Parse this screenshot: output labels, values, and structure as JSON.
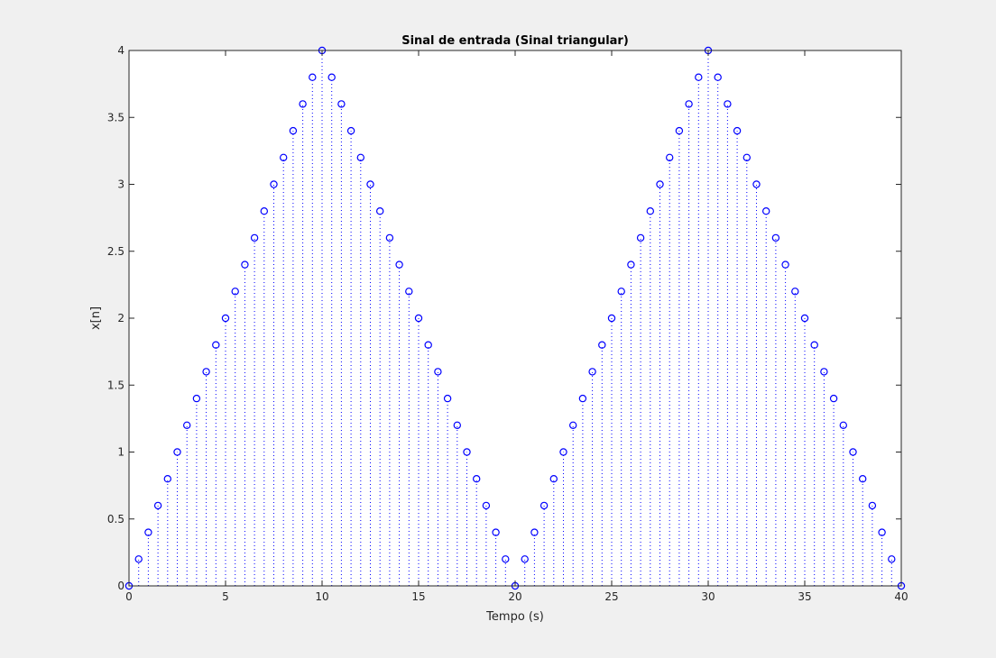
{
  "chart_data": {
    "type": "scatter",
    "style": "stem",
    "title": "Sinal de entrada (Sinal triangular)",
    "xlabel": "Tempo (s)",
    "ylabel": "x[n]",
    "xlim": [
      0,
      40
    ],
    "ylim": [
      0,
      4
    ],
    "xticks": [
      "0",
      "5",
      "10",
      "15",
      "20",
      "25",
      "30",
      "35",
      "40"
    ],
    "yticks": [
      "0",
      "0.5",
      "1",
      "1.5",
      "2",
      "2.5",
      "3",
      "3.5",
      "4"
    ],
    "grid": false,
    "marker": "circle",
    "stem_line": "dotted",
    "colors": {
      "stem": "#0000ff",
      "axes_bg": "#ffffff",
      "figure_bg": "#f0f0f0",
      "axis": "#262626"
    },
    "series": [
      {
        "x": [
          0,
          0.5,
          1,
          1.5,
          2,
          2.5,
          3,
          3.5,
          4,
          4.5,
          5,
          5.5,
          6,
          6.5,
          7,
          7.5,
          8,
          8.5,
          9,
          9.5,
          10,
          10.5,
          11,
          11.5,
          12,
          12.5,
          13,
          13.5,
          14,
          14.5,
          15,
          15.5,
          16,
          16.5,
          17,
          17.5,
          18,
          18.5,
          19,
          19.5,
          20,
          20.5,
          21,
          21.5,
          22,
          22.5,
          23,
          23.5,
          24,
          24.5,
          25,
          25.5,
          26,
          26.5,
          27,
          27.5,
          28,
          28.5,
          29,
          29.5,
          30,
          30.5,
          31,
          31.5,
          32,
          32.5,
          33,
          33.5,
          34,
          34.5,
          35,
          35.5,
          36,
          36.5,
          37,
          37.5,
          38,
          38.5,
          39,
          39.5,
          40
        ],
        "y": [
          0,
          0.2,
          0.4,
          0.6,
          0.8,
          1,
          1.2,
          1.4,
          1.6,
          1.8,
          2,
          2.2,
          2.4,
          2.6,
          2.8,
          3,
          3.2,
          3.4,
          3.6,
          3.8,
          4,
          3.8,
          3.6,
          3.4,
          3.2,
          3,
          2.8,
          2.6,
          2.4,
          2.2,
          2,
          1.8,
          1.6,
          1.4,
          1.2,
          1,
          0.8,
          0.6,
          0.4,
          0.2,
          0,
          0.2,
          0.4,
          0.6,
          0.8,
          1,
          1.2,
          1.4,
          1.6,
          1.8,
          2,
          2.2,
          2.4,
          2.6,
          2.8,
          3,
          3.2,
          3.4,
          3.6,
          3.8,
          4,
          3.8,
          3.6,
          3.4,
          3.2,
          3,
          2.8,
          2.6,
          2.4,
          2.2,
          2,
          1.8,
          1.6,
          1.4,
          1.2,
          1,
          0.8,
          0.6,
          0.4,
          0.2,
          0
        ]
      }
    ]
  }
}
